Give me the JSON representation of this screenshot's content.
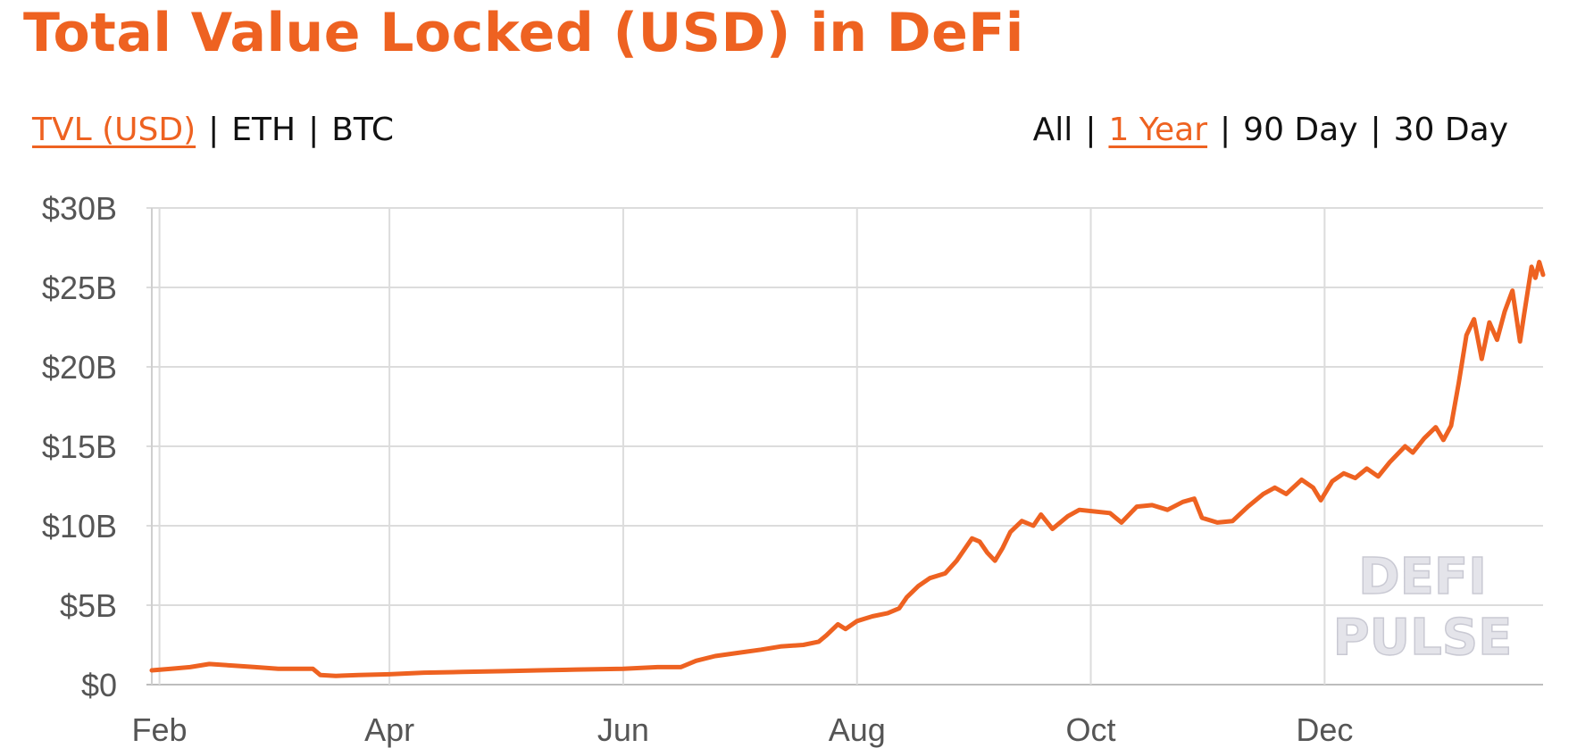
{
  "page": {
    "title": "Total Value Locked (USD) in DeFi"
  },
  "unit_toggle": {
    "options": [
      "TVL (USD)",
      "ETH",
      "BTC"
    ],
    "selected": "TVL (USD)"
  },
  "range_toggle": {
    "options": [
      "All",
      "1 Year",
      "90 Day",
      "30 Day"
    ],
    "selected": "1 Year"
  },
  "colors": {
    "accent": "#ee6221",
    "line": "#ee6221",
    "grid": "#dcdcdc",
    "axis_text": "#555555",
    "watermark": "#e4e4ea"
  },
  "chart_data": {
    "type": "line",
    "title": "",
    "xlabel": "",
    "ylabel": "",
    "x_ticks": [
      "Feb",
      "Apr",
      "Jun",
      "Aug",
      "Oct",
      "Dec"
    ],
    "y_ticks": [
      "$0",
      "$5B",
      "$10B",
      "$15B",
      "$20B",
      "$25B",
      "$30B"
    ],
    "ylim": [
      0,
      30
    ],
    "y_unit": "billion USD",
    "grid": true,
    "legend": "none",
    "watermark": [
      "DEFI",
      "PULSE"
    ],
    "series": [
      {
        "points": [
          [
            "2020-01-30",
            0.9
          ],
          [
            "2020-02-04",
            1.0
          ],
          [
            "2020-02-09",
            1.1
          ],
          [
            "2020-02-14",
            1.3
          ],
          [
            "2020-02-20",
            1.2
          ],
          [
            "2020-02-26",
            1.1
          ],
          [
            "2020-03-03",
            1.0
          ],
          [
            "2020-03-08",
            1.0
          ],
          [
            "2020-03-12",
            1.0
          ],
          [
            "2020-03-14",
            0.6
          ],
          [
            "2020-03-18",
            0.55
          ],
          [
            "2020-03-24",
            0.6
          ],
          [
            "2020-04-01",
            0.65
          ],
          [
            "2020-04-10",
            0.75
          ],
          [
            "2020-04-20",
            0.8
          ],
          [
            "2020-05-01",
            0.85
          ],
          [
            "2020-05-10",
            0.9
          ],
          [
            "2020-05-20",
            0.95
          ],
          [
            "2020-06-01",
            1.0
          ],
          [
            "2020-06-10",
            1.1
          ],
          [
            "2020-06-16",
            1.1
          ],
          [
            "2020-06-20",
            1.5
          ],
          [
            "2020-06-25",
            1.8
          ],
          [
            "2020-07-01",
            2.0
          ],
          [
            "2020-07-07",
            2.2
          ],
          [
            "2020-07-12",
            2.4
          ],
          [
            "2020-07-18",
            2.5
          ],
          [
            "2020-07-22",
            2.7
          ],
          [
            "2020-07-24",
            3.1
          ],
          [
            "2020-07-27",
            3.8
          ],
          [
            "2020-07-29",
            3.5
          ],
          [
            "2020-08-01",
            4.0
          ],
          [
            "2020-08-05",
            4.3
          ],
          [
            "2020-08-09",
            4.5
          ],
          [
            "2020-08-12",
            4.8
          ],
          [
            "2020-08-14",
            5.5
          ],
          [
            "2020-08-17",
            6.2
          ],
          [
            "2020-08-20",
            6.7
          ],
          [
            "2020-08-24",
            7.0
          ],
          [
            "2020-08-27",
            7.8
          ],
          [
            "2020-08-31",
            9.2
          ],
          [
            "2020-09-02",
            9.0
          ],
          [
            "2020-09-04",
            8.3
          ],
          [
            "2020-09-06",
            7.8
          ],
          [
            "2020-09-08",
            8.6
          ],
          [
            "2020-09-10",
            9.6
          ],
          [
            "2020-09-13",
            10.3
          ],
          [
            "2020-09-16",
            10.0
          ],
          [
            "2020-09-18",
            10.7
          ],
          [
            "2020-09-21",
            9.8
          ],
          [
            "2020-09-25",
            10.6
          ],
          [
            "2020-09-28",
            11.0
          ],
          [
            "2020-10-02",
            10.9
          ],
          [
            "2020-10-06",
            10.8
          ],
          [
            "2020-10-09",
            10.2
          ],
          [
            "2020-10-13",
            11.2
          ],
          [
            "2020-10-17",
            11.3
          ],
          [
            "2020-10-21",
            11.0
          ],
          [
            "2020-10-25",
            11.5
          ],
          [
            "2020-10-28",
            11.7
          ],
          [
            "2020-10-30",
            10.5
          ],
          [
            "2020-11-03",
            10.2
          ],
          [
            "2020-11-07",
            10.3
          ],
          [
            "2020-11-11",
            11.2
          ],
          [
            "2020-11-15",
            12.0
          ],
          [
            "2020-11-18",
            12.4
          ],
          [
            "2020-11-21",
            12.0
          ],
          [
            "2020-11-25",
            12.9
          ],
          [
            "2020-11-28",
            12.4
          ],
          [
            "2020-11-30",
            11.6
          ],
          [
            "2020-12-03",
            12.8
          ],
          [
            "2020-12-06",
            13.3
          ],
          [
            "2020-12-09",
            13.0
          ],
          [
            "2020-12-12",
            13.6
          ],
          [
            "2020-12-15",
            13.1
          ],
          [
            "2020-12-18",
            14.0
          ],
          [
            "2020-12-22",
            15.0
          ],
          [
            "2020-12-24",
            14.6
          ],
          [
            "2020-12-27",
            15.5
          ],
          [
            "2020-12-30",
            16.2
          ],
          [
            "2021-01-01",
            15.4
          ],
          [
            "2021-01-03",
            16.3
          ],
          [
            "2021-01-05",
            19.0
          ],
          [
            "2021-01-07",
            22.0
          ],
          [
            "2021-01-09",
            23.0
          ],
          [
            "2021-01-11",
            20.5
          ],
          [
            "2021-01-13",
            22.8
          ],
          [
            "2021-01-15",
            21.7
          ],
          [
            "2021-01-17",
            23.5
          ],
          [
            "2021-01-19",
            24.8
          ],
          [
            "2021-01-21",
            21.6
          ],
          [
            "2021-01-22",
            23.2
          ],
          [
            "2021-01-24",
            26.3
          ],
          [
            "2021-01-25",
            25.6
          ],
          [
            "2021-01-26",
            26.6
          ],
          [
            "2021-01-27",
            25.8
          ]
        ]
      }
    ]
  }
}
